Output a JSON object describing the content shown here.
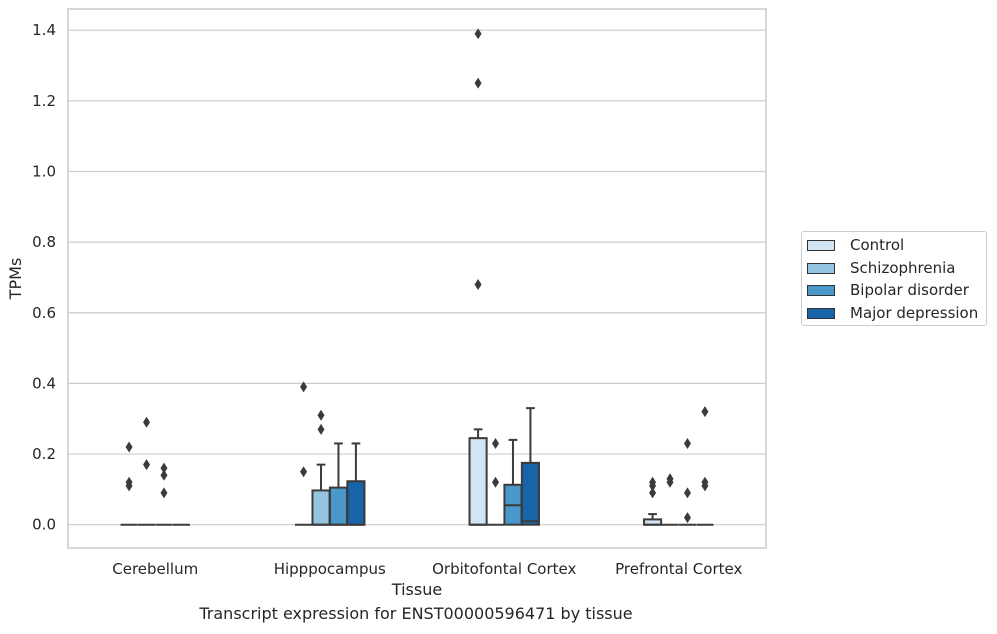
{
  "caption": "Transcript expression for ENST00000596471 by tissue",
  "chart_data": {
    "type": "box",
    "title": "",
    "xlabel": "Tissue",
    "ylabel": "TPMs",
    "ylim": [
      -0.066,
      1.46
    ],
    "yticks": [
      0.0,
      0.2,
      0.4,
      0.6,
      0.8,
      1.0,
      1.2,
      1.4
    ],
    "ytick_labels": [
      "0.0",
      "0.2",
      "0.4",
      "0.6",
      "0.8",
      "1.0",
      "1.2",
      "1.4"
    ],
    "grid": true,
    "legend_position": "right",
    "categories": [
      "Cerebellum",
      "Hipppocampus",
      "Orbitofontal Cortex",
      "Prefrontal Cortex"
    ],
    "series": [
      {
        "name": "Control",
        "color": "#d3e4f3"
      },
      {
        "name": "Schizophrenia",
        "color": "#94c4df"
      },
      {
        "name": "Bipolar disorder",
        "color": "#4a98c9"
      },
      {
        "name": "Major depression",
        "color": "#1764ab"
      }
    ],
    "boxes": [
      {
        "category": 0,
        "series": 0,
        "q1": 0,
        "median": 0,
        "q3": 0,
        "whislo": 0,
        "whishi": 0,
        "fliers": [
          0.11,
          0.12,
          0.22
        ]
      },
      {
        "category": 0,
        "series": 1,
        "q1": 0,
        "median": 0,
        "q3": 0,
        "whislo": 0,
        "whishi": 0,
        "fliers": [
          0.29,
          0.17
        ]
      },
      {
        "category": 0,
        "series": 2,
        "q1": 0,
        "median": 0,
        "q3": 0,
        "whislo": 0,
        "whishi": 0,
        "fliers": [
          0.16,
          0.14,
          0.09
        ]
      },
      {
        "category": 0,
        "series": 3,
        "q1": 0,
        "median": 0,
        "q3": 0,
        "whislo": 0,
        "whishi": 0,
        "fliers": []
      },
      {
        "category": 1,
        "series": 0,
        "q1": 0,
        "median": 0,
        "q3": 0,
        "whislo": 0,
        "whishi": 0,
        "fliers": [
          0.39,
          0.15
        ]
      },
      {
        "category": 1,
        "series": 1,
        "q1": 0,
        "median": 0,
        "q3": 0.097,
        "whislo": 0,
        "whishi": 0.17,
        "fliers": [
          0.31,
          0.27
        ]
      },
      {
        "category": 1,
        "series": 2,
        "q1": 0,
        "median": 0,
        "q3": 0.105,
        "whislo": 0,
        "whishi": 0.23,
        "fliers": []
      },
      {
        "category": 1,
        "series": 3,
        "q1": 0,
        "median": 0,
        "q3": 0.123,
        "whislo": 0,
        "whishi": 0.23,
        "fliers": []
      },
      {
        "category": 2,
        "series": 0,
        "q1": 0,
        "median": 0,
        "q3": 0.245,
        "whislo": 0,
        "whishi": 0.27,
        "fliers": [
          1.39,
          1.25,
          0.68
        ]
      },
      {
        "category": 2,
        "series": 1,
        "q1": 0,
        "median": 0,
        "q3": 0,
        "whislo": 0,
        "whishi": 0,
        "fliers": [
          0.23,
          0.12
        ]
      },
      {
        "category": 2,
        "series": 2,
        "q1": 0,
        "median": 0.055,
        "q3": 0.113,
        "whislo": 0,
        "whishi": 0.24,
        "fliers": []
      },
      {
        "category": 2,
        "series": 3,
        "q1": 0,
        "median": 0.01,
        "q3": 0.175,
        "whislo": 0,
        "whishi": 0.33,
        "fliers": []
      },
      {
        "category": 3,
        "series": 0,
        "q1": 0,
        "median": 0,
        "q3": 0.015,
        "whislo": 0,
        "whishi": 0.03,
        "fliers": [
          0.12,
          0.11,
          0.09
        ]
      },
      {
        "category": 3,
        "series": 1,
        "q1": 0,
        "median": 0,
        "q3": 0,
        "whislo": 0,
        "whishi": 0,
        "fliers": [
          0.13,
          0.12
        ]
      },
      {
        "category": 3,
        "series": 2,
        "q1": 0,
        "median": 0,
        "q3": 0,
        "whislo": 0,
        "whishi": 0,
        "fliers": [
          0.23,
          0.09,
          0.02
        ]
      },
      {
        "category": 3,
        "series": 3,
        "q1": 0,
        "median": 0,
        "q3": 0,
        "whislo": 0,
        "whishi": 0,
        "fliers": [
          0.32,
          0.12,
          0.11
        ]
      }
    ]
  }
}
